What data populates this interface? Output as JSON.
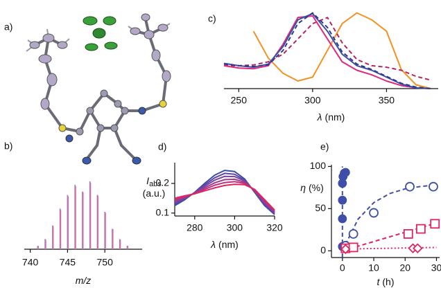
{
  "panel_a": {
    "label": "a)"
  },
  "chart_data": [
    {
      "type": "stem",
      "label": "b)",
      "xlabel": {
        "symbol": "m/z"
      },
      "xlim": [
        739.2,
        755
      ],
      "ylim": [
        0,
        1
      ],
      "xticks": [
        740,
        745,
        750
      ],
      "axes": [
        "bottom"
      ],
      "x": [
        741,
        742,
        743,
        744,
        745,
        746,
        747,
        748,
        749,
        750,
        751,
        752,
        753
      ],
      "series": [
        {
          "color": "#8a7fc4",
          "values": [
            0.05,
            0.15,
            0.35,
            0.6,
            0.8,
            0.95,
            0.85,
            1.0,
            0.8,
            0.55,
            0.3,
            0.15,
            0.05
          ]
        },
        {
          "color": "#e06aa0",
          "values": [
            0.05,
            0.14,
            0.34,
            0.58,
            0.78,
            0.93,
            0.84,
            0.98,
            0.79,
            0.54,
            0.3,
            0.14,
            0.05
          ]
        }
      ]
    },
    {
      "type": "line",
      "label": "c)",
      "xlabel": {
        "symbol": "λ",
        "unit": "(nm)"
      },
      "xlim": [
        240,
        385
      ],
      "ylim": [
        0,
        1.05
      ],
      "xticks": [
        250,
        300,
        350
      ],
      "axes": [
        "bottom"
      ],
      "x": [
        240,
        250,
        260,
        270,
        280,
        290,
        300,
        310,
        320,
        330,
        340,
        350,
        360,
        370,
        380
      ],
      "series": [
        {
          "color": "#f39222",
          "dash": "solid",
          "values": [
            null,
            null,
            0.75,
            0.4,
            0.2,
            0.1,
            0.15,
            0.5,
            0.85,
            0.99,
            0.9,
            0.75,
            0.25,
            0.05,
            0
          ]
        },
        {
          "color": "#b5265e",
          "dash": "dashed",
          "values": [
            0.3,
            0.3,
            0.31,
            0.35,
            0.45,
            0.65,
            0.85,
            0.93,
            0.6,
            0.38,
            0.3,
            0.28,
            0.24,
            0.16,
            0.11
          ]
        },
        {
          "color": "#e0287a",
          "dash": "solid",
          "values": [
            0.3,
            0.27,
            0.26,
            0.3,
            0.58,
            0.93,
            0.95,
            0.65,
            0.35,
            0.24,
            0.18,
            0.1,
            0.04,
            0.01,
            0
          ]
        },
        {
          "color": "#3f4fa8",
          "dash": "solid",
          "values": [
            0.33,
            0.3,
            0.28,
            0.32,
            0.55,
            0.9,
            0.98,
            0.75,
            0.45,
            0.3,
            0.24,
            0.15,
            0.06,
            0.01,
            0
          ]
        },
        {
          "color": "#2c3a8c",
          "dash": "dashed",
          "values": [
            0.32,
            0.3,
            0.29,
            0.31,
            0.5,
            0.85,
            0.99,
            0.8,
            0.48,
            0.32,
            0.25,
            0.16,
            0.07,
            0.02,
            0
          ]
        }
      ]
    },
    {
      "type": "line",
      "label": "d)",
      "xlabel": {
        "symbol": "λ",
        "unit": "(nm)"
      },
      "ylabel": {
        "symbol": "I",
        "sub": "abs",
        "unit": "(a.u.)"
      },
      "xlim": [
        270,
        320
      ],
      "ylim": [
        0.09,
        0.27
      ],
      "xticks": [
        280,
        300,
        320
      ],
      "yticks": [
        0.1,
        0.2
      ],
      "axes": [
        "bottom",
        "left"
      ],
      "x": [
        270,
        275,
        280,
        285,
        290,
        295,
        300,
        305,
        310,
        315,
        320
      ],
      "series": [
        {
          "color": "#3b4ba8",
          "dash": "solid",
          "values": [
            0.125,
            0.145,
            0.17,
            0.2,
            0.228,
            0.244,
            0.24,
            0.215,
            0.17,
            0.125,
            0.095
          ]
        },
        {
          "color": "#5a48a6",
          "dash": "solid",
          "values": [
            0.13,
            0.148,
            0.169,
            0.195,
            0.219,
            0.234,
            0.231,
            0.211,
            0.172,
            0.129,
            0.098
          ]
        },
        {
          "color": "#7a42a0",
          "dash": "solid",
          "values": [
            0.135,
            0.15,
            0.168,
            0.19,
            0.211,
            0.224,
            0.223,
            0.208,
            0.174,
            0.133,
            0.101
          ]
        },
        {
          "color": "#9c3a90",
          "dash": "solid",
          "values": [
            0.14,
            0.153,
            0.167,
            0.185,
            0.202,
            0.213,
            0.214,
            0.204,
            0.176,
            0.137,
            0.104
          ]
        },
        {
          "color": "#c0307a",
          "dash": "solid",
          "values": [
            0.145,
            0.155,
            0.166,
            0.18,
            0.194,
            0.203,
            0.206,
            0.2,
            0.178,
            0.141,
            0.107
          ]
        },
        {
          "color": "#e0245e",
          "dash": "solid",
          "values": [
            0.15,
            0.158,
            0.165,
            0.175,
            0.185,
            0.193,
            0.197,
            0.196,
            0.18,
            0.145,
            0.11
          ]
        }
      ]
    },
    {
      "type": "scatter",
      "label": "e)",
      "xlabel": {
        "symbol": "t",
        "unit": "(h)"
      },
      "ylabel": {
        "symbol": "η",
        "unit": "(%)"
      },
      "xlim": [
        -3.5,
        31
      ],
      "ylim": [
        -8,
        102
      ],
      "xticks": [
        0,
        10,
        20,
        30
      ],
      "yticks": [
        0,
        50,
        100
      ],
      "axes": [
        "bottom",
        "left"
      ],
      "series": [
        {
          "color": "#3f4fa8",
          "style": "line",
          "dash": "dashed",
          "x": [
            0,
            0
          ],
          "values": [
            -8,
            100
          ]
        },
        {
          "color": "#3f4fa8",
          "style": "line",
          "dash": "dashed",
          "x": [
            0,
            5,
            10,
            15,
            20,
            25,
            30
          ],
          "values": [
            0,
            37.6,
            57.1,
            67.8,
            73.4,
            76.3,
            78.1
          ]
        },
        {
          "color": "#e0245e",
          "style": "line",
          "dash": "dashed",
          "x": [
            0,
            30
          ],
          "values": [
            0,
            33
          ]
        },
        {
          "color": "#e0245e",
          "style": "line",
          "dash": "dotted",
          "x": [
            0,
            30
          ],
          "values": [
            2,
            4
          ]
        },
        {
          "color": "#3f4fa8",
          "marker": "filled-circle",
          "x": [
            0,
            0,
            0,
            0,
            0.2,
            0.6,
            1.0
          ],
          "values": [
            5,
            38,
            60,
            80,
            88,
            92,
            93
          ]
        },
        {
          "color": "#3f4fa8",
          "marker": "open-circle",
          "x": [
            1,
            3.5,
            10,
            21.5,
            29
          ],
          "values": [
            6,
            20,
            45,
            76,
            76
          ]
        },
        {
          "color": "#e0245e",
          "marker": "open-square",
          "x": [
            1,
            3.5,
            21,
            25,
            29.5
          ],
          "values": [
            3,
            4,
            20,
            26,
            32
          ]
        },
        {
          "color": "#e0245e",
          "marker": "open-diamond",
          "x": [
            1,
            22.5,
            24
          ],
          "values": [
            2,
            3,
            3
          ]
        }
      ]
    }
  ]
}
